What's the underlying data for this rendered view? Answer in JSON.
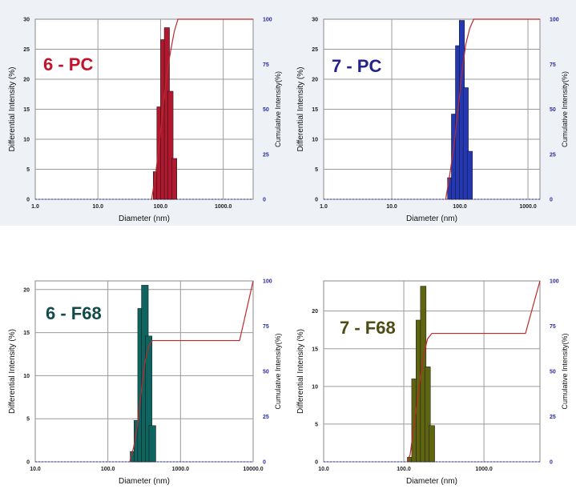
{
  "chart_data": [
    {
      "type": "bar",
      "sample": "6 - PC",
      "color": "#b01830",
      "label_color": "#c4122a",
      "line_color": "#c0282a",
      "xlabel": "Diameter (nm)",
      "ylabel": "Differential Intensity (%)",
      "y2label": "Cumulative Intensity(%)",
      "xscale": "log",
      "xlim": [
        1.0,
        3000.0
      ],
      "xticks": [
        "1.0",
        "10.0",
        "100.0",
        "1000.0"
      ],
      "ylim": [
        0,
        30
      ],
      "yticks": [
        "0",
        "5",
        "10",
        "15",
        "20",
        "25",
        "30"
      ],
      "y2ticks": [
        "0",
        "25",
        "50",
        "75",
        "100"
      ],
      "grid": true,
      "x": [
        84,
        96,
        110,
        126,
        144,
        165,
        189
      ],
      "values": [
        4.6,
        15.4,
        26.6,
        28.6,
        18.0,
        6.8,
        0.0
      ],
      "cumulative": {
        "x": [
          72,
          84,
          96,
          110,
          126,
          144,
          165,
          189,
          220,
          3000
        ],
        "y": [
          0,
          15,
          32,
          52,
          70,
          82,
          93,
          100,
          100,
          100
        ]
      }
    },
    {
      "type": "bar",
      "sample": "7 - PC",
      "color": "#2438b4",
      "label_color": "#23238c",
      "line_color": "#c0282a",
      "xlabel": "Diameter (nm)",
      "ylabel": "Differential Intensity (%)",
      "y2label": "Cumulative Intensity(%)",
      "xscale": "log",
      "xlim": [
        1.0,
        1500.0
      ],
      "xticks": [
        "1.0",
        "10.0",
        "100.0",
        "1000.0"
      ],
      "ylim": [
        0,
        30
      ],
      "yticks": [
        "0",
        "5",
        "10",
        "15",
        "20",
        "25",
        "30"
      ],
      "y2ticks": [
        "0",
        "25",
        "50",
        "75",
        "100"
      ],
      "grid": true,
      "x": [
        72,
        82,
        94,
        107,
        122,
        140,
        160
      ],
      "values": [
        3.6,
        14.2,
        25.6,
        29.8,
        18.6,
        8.0,
        0.0
      ],
      "cumulative": {
        "x": [
          62,
          72,
          82,
          94,
          107,
          122,
          140,
          160,
          185,
          1500
        ],
        "y": [
          0,
          15,
          30,
          50,
          70,
          86,
          95,
          100,
          100,
          100
        ]
      }
    },
    {
      "type": "bar",
      "sample": "6 - F68",
      "color": "#0f6460",
      "label_color": "#134a4c",
      "line_color": "#c0282a",
      "xlabel": "Diameter (nm)",
      "ylabel": "Differential Intensity (%)",
      "y2label": "Cumulative Intensity(%)",
      "xscale": "log",
      "xlim": [
        10.0,
        10000.0
      ],
      "xticks": [
        "10.0",
        "100.0",
        "1000.0",
        "10000.0"
      ],
      "ylim": [
        0,
        21
      ],
      "yticks": [
        "0",
        "5",
        "10",
        "15",
        "20"
      ],
      "y2ticks": [
        "0",
        "25",
        "50",
        "75",
        "100"
      ],
      "grid": true,
      "x": [
        226,
        255,
        287,
        323,
        364,
        410,
        462
      ],
      "values": [
        1.2,
        4.8,
        17.8,
        20.5,
        14.6,
        4.2,
        0.0
      ],
      "cumulative": {
        "x": [
          200,
          226,
          255,
          287,
          323,
          364,
          410,
          6500,
          10000
        ],
        "y": [
          0,
          8,
          20,
          38,
          55,
          64,
          67,
          67,
          100
        ]
      }
    },
    {
      "type": "bar",
      "sample": "7 - F68",
      "color": "#5e6410",
      "label_color": "#4e4c12",
      "line_color": "#c0282a",
      "xlabel": "Diameter (nm)",
      "ylabel": "Differential Intensity (%)",
      "y2label": "Cumulative Intensity(%)",
      "xscale": "log",
      "xlim": [
        10.0,
        5000.0
      ],
      "xticks": [
        "10.0",
        "100.0",
        "1000.0"
      ],
      "ylim": [
        0,
        24
      ],
      "yticks": [
        "0",
        "5",
        "10",
        "15",
        "20"
      ],
      "y2ticks": [
        "0",
        "25",
        "50",
        "75",
        "100"
      ],
      "grid": true,
      "x": [
        120,
        136,
        154,
        175,
        198,
        224,
        254
      ],
      "values": [
        0.6,
        11.0,
        18.8,
        23.3,
        12.6,
        4.8,
        0.0
      ],
      "cumulative": {
        "x": [
          110,
          120,
          136,
          154,
          175,
          198,
          224,
          254,
          3300,
          5000
        ],
        "y": [
          0,
          4,
          22,
          40,
          58,
          68,
          71,
          71,
          71,
          100
        ]
      }
    }
  ]
}
